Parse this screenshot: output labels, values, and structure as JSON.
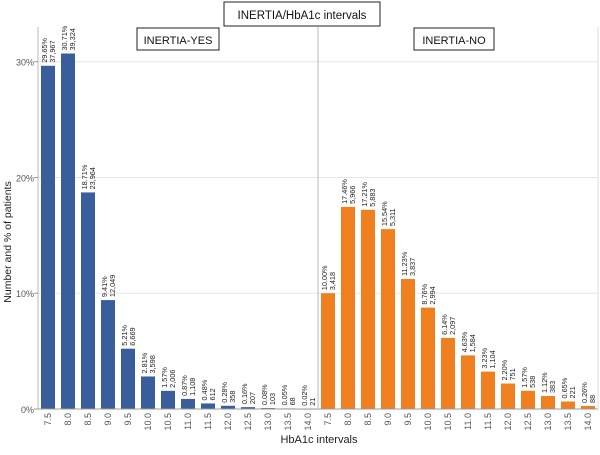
{
  "chart_data": {
    "type": "bar",
    "title": "INERTIA/HbA1c intervals",
    "xlabel": "HbA1c intervals",
    "ylabel": "Number and % of patients",
    "ylim": [
      0,
      0.33
    ],
    "yticks": [
      0,
      0.1,
      0.2,
      0.3
    ],
    "ytick_labels": [
      "0%",
      "10%",
      "20%",
      "30%"
    ],
    "grid": true,
    "categories": [
      "7.5",
      "8.0",
      "8.5",
      "9.0",
      "9.5",
      "10.0",
      "10.5",
      "11.0",
      "11.5",
      "12.0",
      "12.5",
      "13.0",
      "13.5",
      "14.0"
    ],
    "panels": [
      {
        "name": "INERTIA-YES",
        "color": "#3a5e9b",
        "values": [
          0.2965,
          0.3071,
          0.1871,
          0.0941,
          0.0521,
          0.0281,
          0.0157,
          0.0087,
          0.0048,
          0.0028,
          0.0016,
          0.0008,
          0.0005,
          0.0002
        ],
        "pct_labels": [
          "29.65%",
          "30.71%",
          "18.71%",
          "9.41%",
          "5.21%",
          "2.81%",
          "1.57%",
          "0.87%",
          "0.48%",
          "0.28%",
          "0.16%",
          "0.08%",
          "0.05%",
          "0.02%"
        ],
        "count_labels": [
          "37,967",
          "39,324",
          "23,964",
          "12,049",
          "6,669",
          "3,598",
          "2,006",
          "1,108",
          "612",
          "358",
          "207",
          "103",
          "68",
          "21"
        ]
      },
      {
        "name": "INERTIA-NO",
        "color": "#f07f1f",
        "values": [
          0.1,
          0.1746,
          0.1721,
          0.1554,
          0.1123,
          0.0876,
          0.0614,
          0.0463,
          0.0323,
          0.022,
          0.0157,
          0.0112,
          0.0065,
          0.0026
        ],
        "pct_labels": [
          "10.00%",
          "17.46%",
          "17.21%",
          "15.54%",
          "11.23%",
          "8.76%",
          "6.14%",
          "4.63%",
          "3.23%",
          "2.20%",
          "1.57%",
          "1.12%",
          "0.65%",
          "0.26%"
        ],
        "count_labels": [
          "3,418",
          "5,966",
          "5,883",
          "5,311",
          "3,837",
          "2,994",
          "2,097",
          "1,584",
          "1,104",
          "751",
          "538",
          "383",
          "221",
          "88"
        ]
      }
    ]
  }
}
